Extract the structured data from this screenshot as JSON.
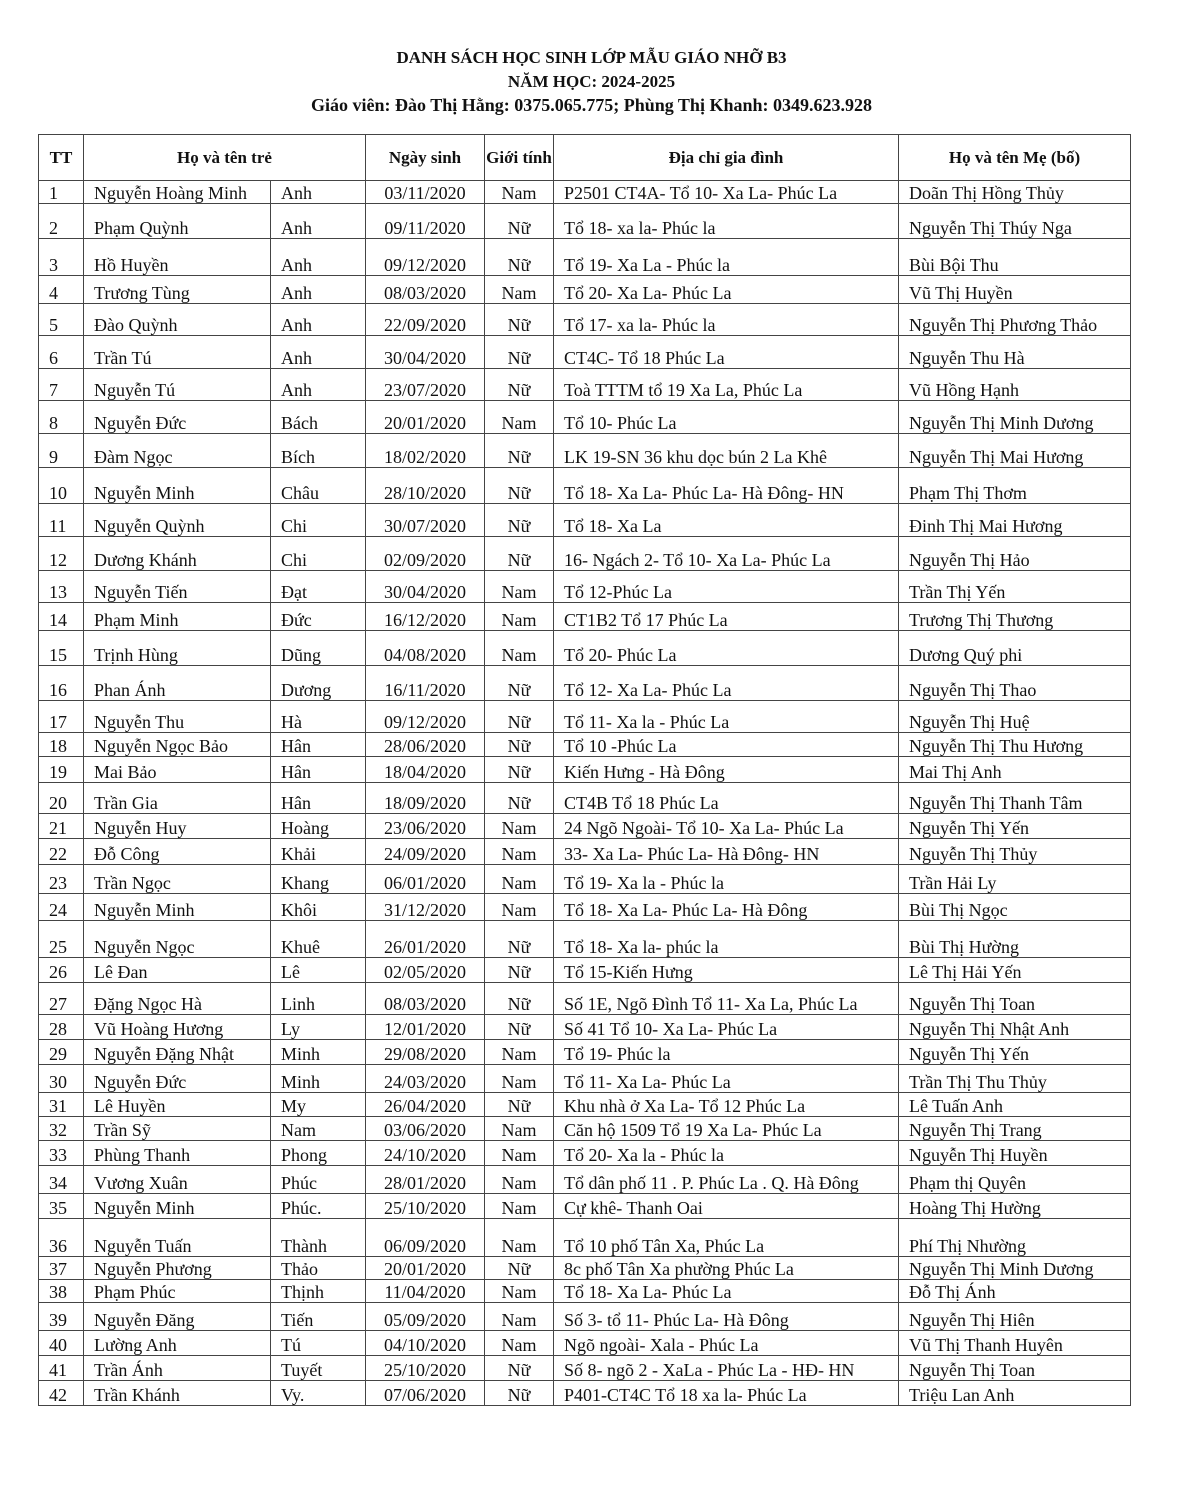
{
  "document": {
    "title": "DANH SÁCH HỌC SINH LỚP MẪU GIÁO NHỠ B3",
    "school_year": "NĂM HỌC: 2024-2025",
    "teachers": "Giáo viên: Đào Thị Hằng: 0375.065.775; Phùng Thị Khanh: 0349.623.928"
  },
  "table": {
    "headers": [
      "TT",
      "Họ và tên trẻ",
      "Ngày sinh",
      "Giới tính",
      "Địa chỉ gia đình",
      "Họ và tên Mẹ (bố)"
    ],
    "rows": [
      [
        "1",
        "Nguyễn Hoàng Minh",
        "Anh",
        "03/11/2020",
        "Nam",
        "P2501 CT4A- Tổ 10- Xa La- Phúc La",
        "Doãn Thị Hồng Thủy"
      ],
      [
        "2",
        "Phạm Quỳnh",
        "Anh",
        "09/11/2020",
        "Nữ",
        "Tổ 18- xa la- Phúc la",
        "Nguyễn Thị Thúy Nga"
      ],
      [
        "3",
        "Hồ Huyền",
        "Anh",
        "09/12/2020",
        "Nữ",
        "Tổ 19- Xa La - Phúc la",
        "Bùi Bội Thu"
      ],
      [
        "4",
        "Trương Tùng",
        "Anh",
        "08/03/2020",
        "Nam",
        "Tổ 20- Xa La- Phúc La",
        "Vũ Thị Huyền"
      ],
      [
        "5",
        "Đào Quỳnh",
        "Anh",
        "22/09/2020",
        "Nữ",
        "Tổ 17- xa la- Phúc la",
        "Nguyễn Thị Phương Thảo"
      ],
      [
        "6",
        "Trần Tú",
        "Anh",
        "30/04/2020",
        "Nữ",
        "CT4C- Tổ 18 Phúc La",
        "Nguyễn Thu Hà"
      ],
      [
        "7",
        "Nguyễn Tú",
        "Anh",
        "23/07/2020",
        "Nữ",
        "Toà TTTM tổ 19 Xa La, Phúc La",
        "Vũ Hồng Hạnh"
      ],
      [
        "8",
        "Nguyễn Đức",
        "Bách",
        "20/01/2020",
        "Nam",
        "Tổ 10- Phúc La",
        "Nguyễn Thị Minh Dương"
      ],
      [
        "9",
        "Đàm Ngọc",
        "Bích",
        "18/02/2020",
        "Nữ",
        "LK 19-SN 36 khu dọc bún 2 La Khê",
        "Nguyễn Thị Mai Hương"
      ],
      [
        "10",
        "Nguyễn Minh",
        "Châu",
        "28/10/2020",
        "Nữ",
        "Tổ 18- Xa La- Phúc La- Hà Đông- HN",
        "Phạm Thị Thơm"
      ],
      [
        "11",
        "Nguyễn Quỳnh",
        "Chi",
        "30/07/2020",
        "Nữ",
        "Tổ 18- Xa La",
        "Đinh Thị Mai Hương"
      ],
      [
        "12",
        "Dương Khánh",
        "Chi",
        "02/09/2020",
        "Nữ",
        "16- Ngách 2- Tổ 10- Xa La- Phúc La",
        "Nguyễn Thị Hảo"
      ],
      [
        "13",
        "Nguyễn Tiến",
        "Đạt",
        "30/04/2020",
        "Nam",
        "Tổ 12-Phúc La",
        "Trần Thị Yến"
      ],
      [
        "14",
        "Phạm Minh",
        "Đức",
        "16/12/2020",
        "Nam",
        "CT1B2 Tổ 17 Phúc La",
        "Trương Thị Thương"
      ],
      [
        "15",
        "Trịnh Hùng",
        "Dũng",
        "04/08/2020",
        "Nam",
        "Tổ 20- Phúc La",
        "Dương Quý phi"
      ],
      [
        "16",
        "Phan Ánh",
        "Dương",
        "16/11/2020",
        "Nữ",
        "Tổ 12- Xa La- Phúc La",
        "Nguyễn Thị Thao"
      ],
      [
        "17",
        "Nguyễn Thu",
        "Hà",
        "09/12/2020",
        "Nữ",
        "Tổ 11- Xa la - Phúc La",
        "Nguyễn Thị Huệ"
      ],
      [
        "18",
        "Nguyễn Ngọc Bảo",
        "Hân",
        "28/06/2020",
        "Nữ",
        "Tổ 10 -Phúc La",
        "Nguyễn Thị Thu Hương"
      ],
      [
        "19",
        "Mai Bảo",
        "Hân",
        "18/04/2020",
        "Nữ",
        "Kiến Hưng - Hà Đông",
        "Mai Thị Anh"
      ],
      [
        "20",
        "Trần Gia",
        "Hân",
        "18/09/2020",
        "Nữ",
        "CT4B Tổ 18 Phúc La",
        "Nguyễn Thị Thanh Tâm"
      ],
      [
        "21",
        "Nguyễn Huy",
        "Hoàng",
        "23/06/2020",
        "Nam",
        "24 Ngõ Ngoài- Tổ 10- Xa La- Phúc La",
        "Nguyễn Thị Yến"
      ],
      [
        "22",
        "Đỗ Công",
        "Khải",
        "24/09/2020",
        "Nam",
        "33- Xa La- Phúc La- Hà Đông- HN",
        "Nguyễn Thị Thủy"
      ],
      [
        "23",
        "Trần Ngọc",
        "Khang",
        "06/01/2020",
        "Nam",
        "Tổ 19- Xa la - Phúc la",
        "Trần Hải Ly"
      ],
      [
        "24",
        "Nguyễn Minh",
        "Khôi",
        "31/12/2020",
        "Nam",
        "Tổ 18- Xa La- Phúc La- Hà Đông",
        "Bùi Thị Ngọc"
      ],
      [
        "25",
        "Nguyễn Ngọc",
        "Khuê",
        "26/01/2020",
        "Nữ",
        "Tổ 18- Xa la- phúc la",
        "Bùi Thị Hường"
      ],
      [
        "26",
        "Lê Đan",
        "Lê",
        "02/05/2020",
        "Nữ",
        "Tổ 15-Kiến Hưng",
        "Lê Thị Hải Yến"
      ],
      [
        "27",
        "Đặng Ngọc Hà",
        "Linh",
        "08/03/2020",
        "Nữ",
        "Số 1E, Ngõ Đình Tổ 11- Xa La, Phúc La",
        "Nguyễn Thị Toan"
      ],
      [
        "28",
        "Vũ Hoàng Hương",
        "Ly",
        "12/01/2020",
        "Nữ",
        "Số 41 Tổ 10- Xa La- Phúc La",
        "Nguyễn Thị Nhật Anh"
      ],
      [
        "29",
        "Nguyễn Đặng Nhật",
        "Minh",
        "29/08/2020",
        "Nam",
        "Tổ 19- Phúc la",
        "Nguyễn Thị Yến"
      ],
      [
        "30",
        "Nguyễn Đức",
        "Minh",
        "24/03/2020",
        "Nam",
        "Tổ 11- Xa La- Phúc La",
        "Trần Thị Thu Thủy"
      ],
      [
        "31",
        "Lê Huyền",
        "My",
        "26/04/2020",
        "Nữ",
        "Khu nhà ở Xa La- Tổ 12 Phúc La",
        "Lê Tuấn Anh"
      ],
      [
        "32",
        "Trần Sỹ",
        "Nam",
        "03/06/2020",
        "Nam",
        "Căn hộ 1509 Tổ 19 Xa La- Phúc La",
        "Nguyễn Thị Trang"
      ],
      [
        "33",
        "Phùng Thanh",
        "Phong",
        "24/10/2020",
        "Nam",
        "Tổ 20- Xa la - Phúc la",
        "Nguyễn Thị Huyền"
      ],
      [
        "34",
        "Vương Xuân",
        "Phúc",
        "28/01/2020",
        "Nam",
        "Tổ dân phố 11 . P. Phúc La . Q. Hà Đông",
        "Phạm thị Quyên"
      ],
      [
        "35",
        "Nguyễn Minh",
        "Phúc.",
        "25/10/2020",
        "Nam",
        "Cự khê- Thanh Oai",
        "Hoàng Thị Hường"
      ],
      [
        "36",
        "Nguyễn Tuấn",
        "Thành",
        "06/09/2020",
        "Nam",
        "Tổ 10 phố Tân Xa, Phúc La",
        "Phí Thị Nhường"
      ],
      [
        "37",
        "Nguyễn Phương",
        "Thảo",
        "20/01/2020",
        "Nữ",
        "8c phố Tân Xa phường Phúc La",
        "Nguyễn Thị Minh Dương"
      ],
      [
        "38",
        "Phạm Phúc",
        "Thịnh",
        "11/04/2020",
        "Nam",
        "Tổ 18- Xa La- Phúc La",
        "Đỗ Thị Ánh"
      ],
      [
        "39",
        "Nguyễn Đăng",
        "Tiến",
        "05/09/2020",
        "Nam",
        "Số 3- tổ 11- Phúc La- Hà Đông",
        "Nguyễn Thị Hiên"
      ],
      [
        "40",
        "Lường Anh",
        "Tú",
        "04/10/2020",
        "Nam",
        "Ngõ ngoài- Xala - Phúc La",
        "Vũ Thị Thanh Huyên"
      ],
      [
        "41",
        "Trần Ánh",
        "Tuyết",
        "25/10/2020",
        "Nữ",
        "Số 8- ngõ 2 - XaLa - Phúc La - HĐ- HN",
        "Nguyễn Thị Toan"
      ],
      [
        "42",
        "Trần Khánh",
        "Vy.",
        "07/06/2020",
        "Nữ",
        "P401-CT4C Tổ 18 xa la- Phúc La",
        "Triệu Lan Anh"
      ]
    ]
  }
}
